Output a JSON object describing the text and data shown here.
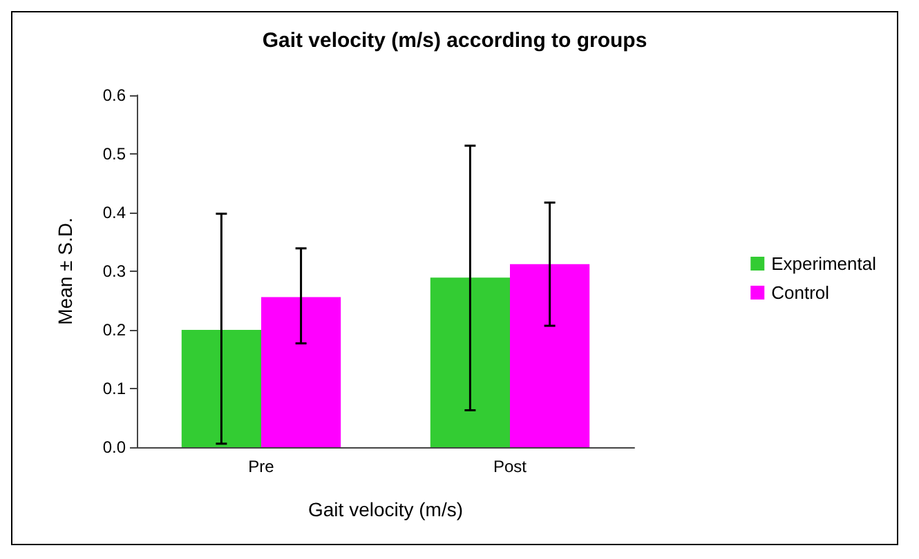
{
  "chart_data": {
    "type": "bar",
    "title": "Gait velocity (m/s) according to groups",
    "xlabel": "Gait velocity (m/s)",
    "ylabel": "Mean ± S.D.",
    "categories": [
      "Pre",
      "Post"
    ],
    "series": [
      {
        "name": "Experimental",
        "color": "#33cc33",
        "values": [
          0.2,
          0.289
        ],
        "errors": [
          [
            0.006,
            0.398
          ],
          [
            0.063,
            0.514
          ]
        ]
      },
      {
        "name": "Control",
        "color": "#ff00ff",
        "values": [
          0.256,
          0.312
        ],
        "errors": [
          [
            0.177,
            0.339
          ],
          [
            0.207,
            0.417
          ]
        ]
      }
    ],
    "ylim": [
      0,
      0.6
    ],
    "yticks": [
      {
        "value": 0,
        "label": "0.0"
      },
      0.1,
      0.2,
      0.3,
      0.4,
      0.5,
      0.6
    ],
    "grid": false,
    "legend": "right"
  }
}
